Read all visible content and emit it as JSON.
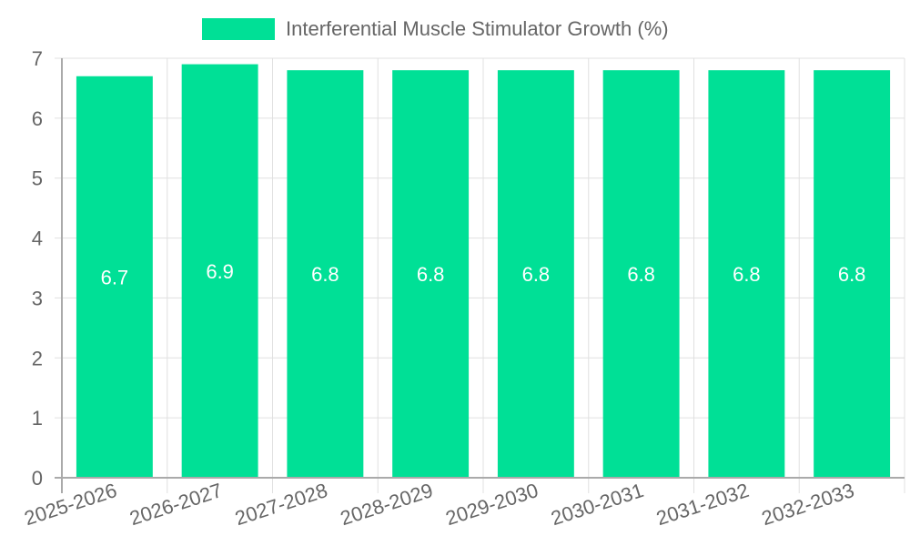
{
  "chart_data": {
    "type": "bar",
    "title": "",
    "xlabel": "",
    "ylabel": "",
    "categories": [
      "2025-2026",
      "2026-2027",
      "2027-2028",
      "2028-2029",
      "2029-2030",
      "2030-2031",
      "2031-2032",
      "2032-2033"
    ],
    "series": [
      {
        "name": "Interferential Muscle Stimulator Growth (%)",
        "values": [
          6.7,
          6.9,
          6.8,
          6.8,
          6.8,
          6.8,
          6.8,
          6.8
        ],
        "color": "#00e096"
      }
    ],
    "data_labels": [
      "6.7",
      "6.9",
      "6.8",
      "6.8",
      "6.8",
      "6.8",
      "6.8",
      "6.8"
    ],
    "ylim": [
      0,
      7
    ],
    "yticks": [
      "0",
      "1",
      "2",
      "3",
      "4",
      "5",
      "6",
      "7"
    ],
    "grid": true,
    "legend_position": "top"
  },
  "legend": {
    "label": "Interferential Muscle Stimulator Growth (%)",
    "color": "#00e096"
  }
}
